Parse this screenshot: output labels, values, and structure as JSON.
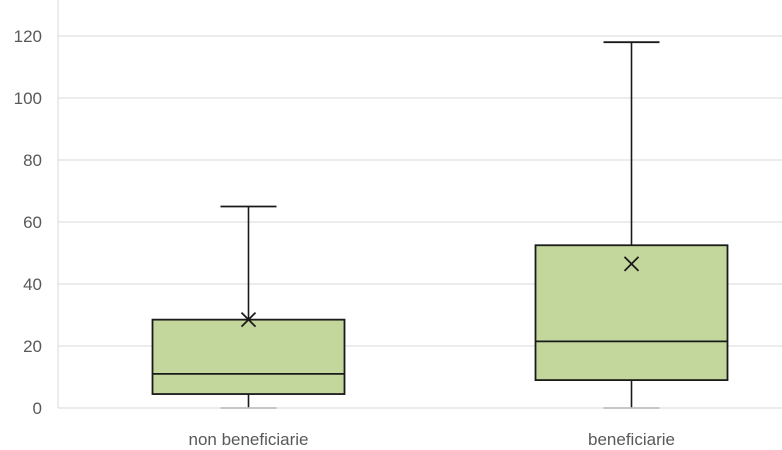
{
  "chart_data": {
    "type": "boxplot",
    "categories": [
      "non beneficiarie",
      "beneficiarie"
    ],
    "boxes": [
      {
        "category": "non beneficiarie",
        "min": 0,
        "q1": 4.5,
        "median": 11,
        "q3": 28.5,
        "max": 65,
        "mean": 28.5
      },
      {
        "category": "beneficiarie",
        "min": 0,
        "q1": 9,
        "median": 21.5,
        "q3": 52.5,
        "max": 118,
        "mean": 46.5
      }
    ],
    "y_ticks": [
      "0",
      "20",
      "40",
      "60",
      "80",
      "100",
      "120"
    ],
    "ylim": [
      0,
      133
    ],
    "grid": true,
    "colors": {
      "box_fill": "#c3d69b",
      "box_stroke": "#1a1a1a",
      "grid": "#d9d9d9",
      "axis_text": "#595959"
    }
  }
}
